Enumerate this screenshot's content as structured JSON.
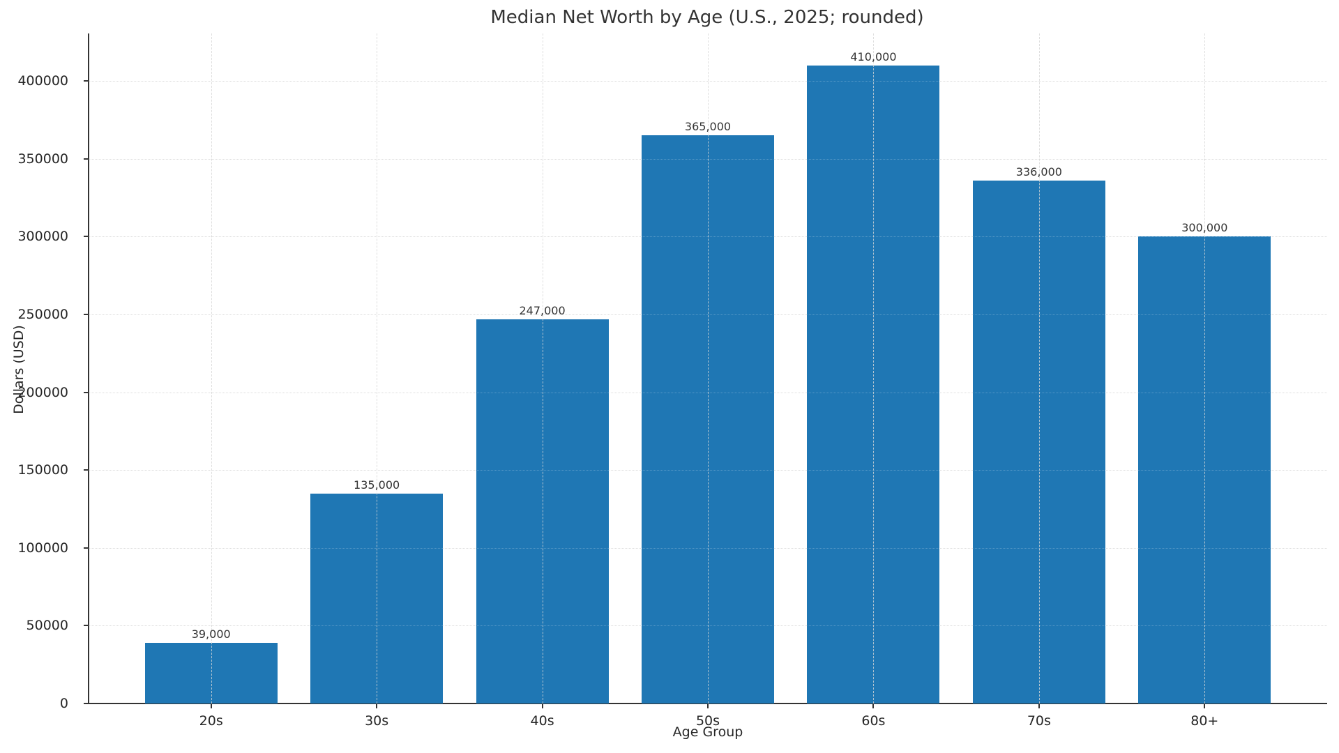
{
  "chart_data": {
    "type": "bar",
    "title": "Median Net Worth by Age (U.S., 2025; rounded)",
    "xlabel": "Age Group",
    "ylabel": "Dollars (USD)",
    "categories": [
      "20s",
      "30s",
      "40s",
      "50s",
      "60s",
      "70s",
      "80+"
    ],
    "values": [
      39000,
      135000,
      247000,
      365000,
      410000,
      336000,
      300000
    ],
    "value_labels": [
      "39,000",
      "135,000",
      "247,000",
      "365,000",
      "410,000",
      "336,000",
      "300,000"
    ],
    "ylim": [
      0,
      430500
    ],
    "yticks": [
      0,
      50000,
      100000,
      150000,
      200000,
      250000,
      300000,
      350000,
      400000
    ],
    "ytick_labels": [
      "0",
      "50000",
      "100000",
      "150000",
      "200000",
      "250000",
      "300000",
      "350000",
      "400000"
    ],
    "grid": true,
    "legend": null,
    "bar_color": "#1f77b4"
  }
}
